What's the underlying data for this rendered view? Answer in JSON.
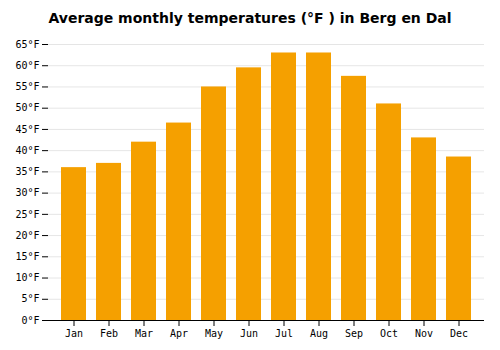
{
  "chart_data": {
    "type": "bar",
    "title": "Average monthly temperatures (°F ) in Berg en Dal",
    "categories": [
      "Jan",
      "Feb",
      "Mar",
      "Apr",
      "May",
      "Jun",
      "Jul",
      "Aug",
      "Sep",
      "Oct",
      "Nov",
      "Dec"
    ],
    "values": [
      36,
      37,
      42,
      46.5,
      55,
      59.5,
      63,
      63,
      57.5,
      51,
      43,
      38.5
    ],
    "color": "#F5A000",
    "ylim": [
      0,
      65
    ],
    "yticks": [
      {
        "value": 0,
        "label": "0°F"
      },
      {
        "value": 5,
        "label": "5°F"
      },
      {
        "value": 10,
        "label": "10°F"
      },
      {
        "value": 15,
        "label": "15°F"
      },
      {
        "value": 20,
        "label": "20°F"
      },
      {
        "value": 25,
        "label": "25°F"
      },
      {
        "value": 30,
        "label": "30°F"
      },
      {
        "value": 35,
        "label": "35°F"
      },
      {
        "value": 40,
        "label": "40°F"
      },
      {
        "value": 45,
        "label": "45°F"
      },
      {
        "value": 50,
        "label": "50°F"
      },
      {
        "value": 55,
        "label": "55°F"
      },
      {
        "value": 60,
        "label": "60°F"
      },
      {
        "value": 65,
        "label": "65°F"
      }
    ],
    "grid": true
  }
}
